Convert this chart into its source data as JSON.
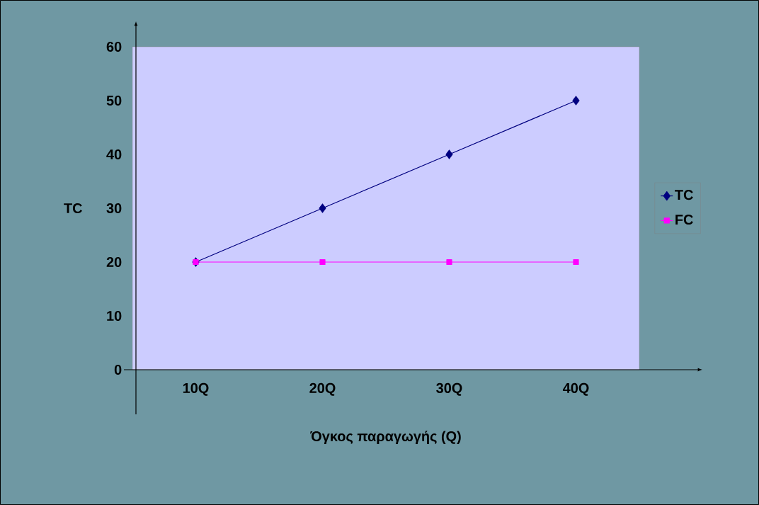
{
  "chart_data": {
    "type": "line",
    "xlabel": "Όγκος παραγωγής (Q)",
    "ylabel": "TC",
    "categories": [
      "10Q",
      "20Q",
      "30Q",
      "40Q"
    ],
    "series": [
      {
        "name": "TC",
        "color": "#000080",
        "values": [
          20,
          30,
          40,
          50
        ],
        "marker": "diamond"
      },
      {
        "name": "FC",
        "color": "#ff00ff",
        "values": [
          20,
          20,
          20,
          20
        ],
        "marker": "square"
      }
    ],
    "ylim": [
      0,
      60
    ],
    "yticks": [
      0,
      10,
      20,
      30,
      40,
      50,
      60
    ],
    "grid": false,
    "legend": "right",
    "line_style": "solid"
  }
}
